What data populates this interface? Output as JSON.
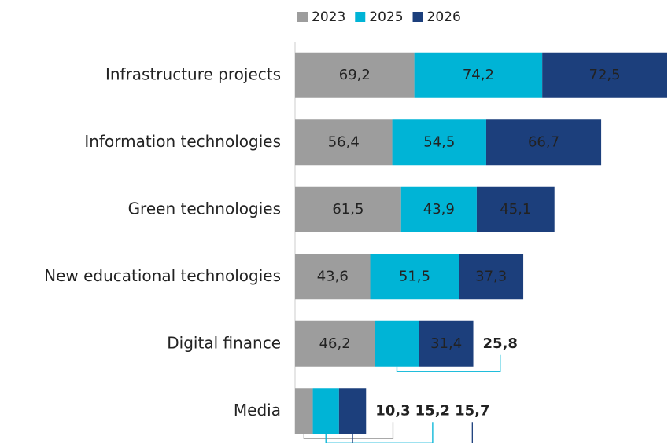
{
  "chart_data": {
    "type": "bar",
    "orientation": "horizontal",
    "stacked": true,
    "categories": [
      "Infrastructure projects",
      "Information technologies",
      "Green technologies",
      "New educational technologies",
      "Digital finance",
      "Media"
    ],
    "series": [
      {
        "name": "2023",
        "color": "#9d9d9d",
        "values": [
          69.2,
          56.4,
          61.5,
          43.6,
          46.2,
          10.3
        ],
        "value_labels": [
          "69,2",
          "56,4",
          "61,5",
          "43,6",
          "46,2",
          "10,3"
        ]
      },
      {
        "name": "2025",
        "color": "#00b4d6",
        "values": [
          74.2,
          54.5,
          43.9,
          51.5,
          25.8,
          15.2
        ],
        "value_labels": [
          "74,2",
          "54,5",
          "43,9",
          "51,5",
          "25,8",
          "15,2"
        ]
      },
      {
        "name": "2026",
        "color": "#1c3f7c",
        "values": [
          72.5,
          66.7,
          45.1,
          37.3,
          31.4,
          15.7
        ],
        "value_labels": [
          "72,5",
          "66,7",
          "45,1",
          "37,3",
          "31,4",
          "15,7"
        ]
      }
    ],
    "legend": "top"
  }
}
